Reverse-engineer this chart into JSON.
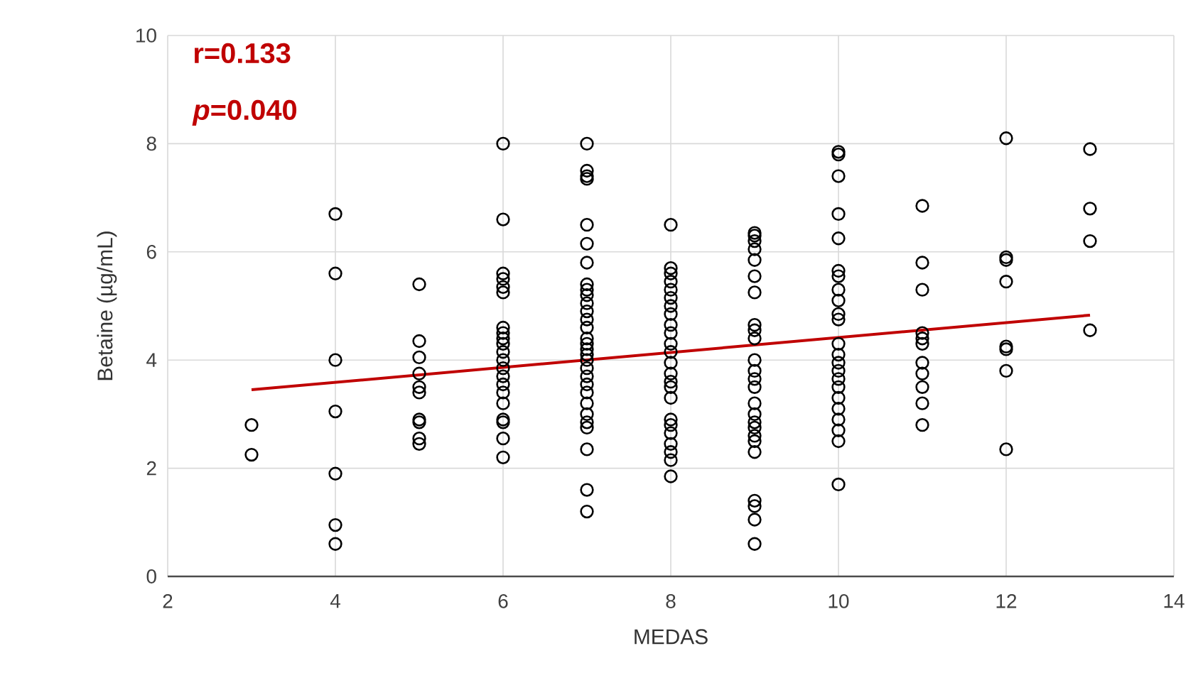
{
  "chart_data": {
    "type": "scatter",
    "xlabel": "MEDAS",
    "ylabel": "Betaine (µg/mL)",
    "xlim": [
      2,
      14
    ],
    "xticks": [
      2,
      4,
      6,
      8,
      10,
      12,
      14
    ],
    "ylim": [
      0,
      10
    ],
    "yticks": [
      0,
      2,
      4,
      6,
      8,
      10
    ],
    "grid": true,
    "annotations": [
      "r=0.133",
      "*p*=0.040"
    ],
    "series": [
      {
        "marker": "circle",
        "color": "#000000",
        "x": [
          3,
          3,
          4,
          4,
          4,
          4,
          4,
          4,
          4,
          5,
          5,
          5,
          5,
          5,
          5,
          5,
          5,
          5,
          5,
          6,
          6,
          6,
          6,
          6,
          6,
          6,
          6,
          6,
          6,
          6,
          6,
          6,
          6,
          6,
          6,
          6,
          6,
          6,
          6,
          6,
          7,
          7,
          7,
          7,
          7,
          7,
          7,
          7,
          7,
          7,
          7,
          7,
          7,
          7,
          7,
          7,
          7,
          7,
          7,
          7,
          7,
          7,
          7,
          7,
          7,
          7,
          7,
          7,
          7,
          7,
          8,
          8,
          8,
          8,
          8,
          8,
          8,
          8,
          8,
          8,
          8,
          8,
          8,
          8,
          8,
          8,
          8,
          8,
          8,
          8,
          8,
          8,
          8,
          8,
          9,
          9,
          9,
          9,
          9,
          9,
          9,
          9,
          9,
          9,
          9,
          9,
          9,
          9,
          9,
          9,
          9,
          9,
          9,
          9,
          9,
          9,
          9,
          9,
          9,
          10,
          10,
          10,
          10,
          10,
          10,
          10,
          10,
          10,
          10,
          10,
          10,
          10,
          10,
          10,
          10,
          10,
          10,
          10,
          10,
          10,
          10,
          10,
          11,
          11,
          11,
          11,
          11,
          11,
          11,
          11,
          11,
          11,
          11,
          12,
          12,
          12,
          12,
          12,
          12,
          12,
          12,
          13,
          13,
          13,
          13
        ],
        "values": [
          2.8,
          2.25,
          6.7,
          5.6,
          4.0,
          3.05,
          1.9,
          0.95,
          0.6,
          5.4,
          4.35,
          4.05,
          3.75,
          3.5,
          3.4,
          2.9,
          2.85,
          2.55,
          2.45,
          8.0,
          6.6,
          5.6,
          5.5,
          5.35,
          5.25,
          4.6,
          4.5,
          4.4,
          4.3,
          4.15,
          4.0,
          3.85,
          3.7,
          3.55,
          3.4,
          3.2,
          2.9,
          2.85,
          2.55,
          2.2,
          8.0,
          7.5,
          7.4,
          7.35,
          6.5,
          6.15,
          5.8,
          5.4,
          5.3,
          5.2,
          5.05,
          4.9,
          4.75,
          4.6,
          4.4,
          4.3,
          4.2,
          4.1,
          4.0,
          3.85,
          3.7,
          3.55,
          3.4,
          3.2,
          3.0,
          2.85,
          2.75,
          2.35,
          1.6,
          1.2,
          6.5,
          5.7,
          5.6,
          5.45,
          5.3,
          5.15,
          5.0,
          4.85,
          4.65,
          4.5,
          4.3,
          4.15,
          3.95,
          3.75,
          3.6,
          3.5,
          3.3,
          2.9,
          2.8,
          2.65,
          2.45,
          2.3,
          2.15,
          1.85,
          6.35,
          6.3,
          6.2,
          6.05,
          5.85,
          5.55,
          5.25,
          4.65,
          4.55,
          4.4,
          4.0,
          3.8,
          3.65,
          3.5,
          3.2,
          3.0,
          2.85,
          2.75,
          2.6,
          2.5,
          2.3,
          1.4,
          1.3,
          1.05,
          0.6,
          7.85,
          7.8,
          7.4,
          6.7,
          6.25,
          5.65,
          5.55,
          5.3,
          5.1,
          4.85,
          4.75,
          4.3,
          4.1,
          3.95,
          3.8,
          3.65,
          3.5,
          3.3,
          3.1,
          2.9,
          2.7,
          2.5,
          1.7,
          6.85,
          5.8,
          5.3,
          4.5,
          4.4,
          4.3,
          3.95,
          3.75,
          3.5,
          3.2,
          2.8,
          8.1,
          5.9,
          5.85,
          5.45,
          4.25,
          4.2,
          3.8,
          2.35,
          7.9,
          6.8,
          6.2,
          4.55
        ]
      },
      {
        "type": "line",
        "color": "#c00000",
        "x": [
          3,
          13
        ],
        "values": [
          3.45,
          4.83
        ]
      }
    ]
  }
}
